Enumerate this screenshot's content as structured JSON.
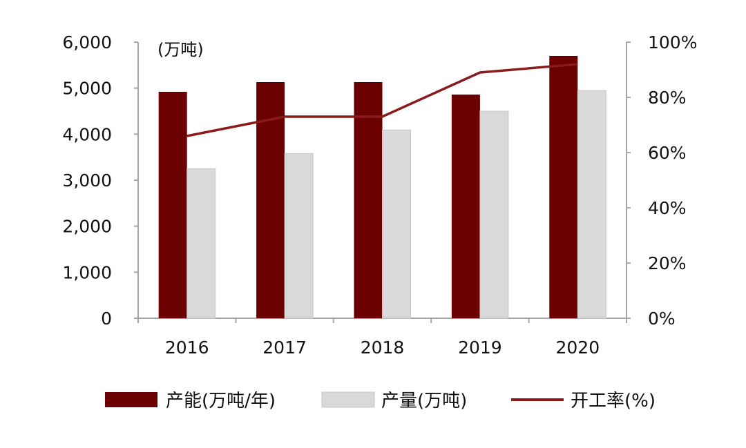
{
  "chart_data": {
    "type": "bar",
    "categories": [
      "2016",
      "2017",
      "2018",
      "2019",
      "2020"
    ],
    "unit_label": "(万吨)",
    "series": [
      {
        "name": "产能(万吨/年)",
        "kind": "bar",
        "axis": "left",
        "color": "#6b0000",
        "values": [
          4920,
          5130,
          5130,
          4860,
          5700
        ]
      },
      {
        "name": "产量(万吨)",
        "kind": "bar",
        "axis": "left",
        "color": "#d9d9d9",
        "values": [
          3250,
          3580,
          4090,
          4500,
          4950
        ]
      },
      {
        "name": "开工率(%)",
        "kind": "line",
        "axis": "right",
        "color": "#8b1a1a",
        "values": [
          66,
          73,
          73,
          89,
          92
        ]
      }
    ],
    "left_axis": {
      "ylim": [
        0,
        6000
      ],
      "ticks": [
        "0",
        "1,000",
        "2,000",
        "3,000",
        "4,000",
        "5,000",
        "6,000"
      ]
    },
    "right_axis": {
      "ylim": [
        0,
        100
      ],
      "ticks": [
        "0%",
        "20%",
        "40%",
        "60%",
        "80%",
        "100%"
      ]
    },
    "legend_position": "bottom",
    "grid": false
  }
}
